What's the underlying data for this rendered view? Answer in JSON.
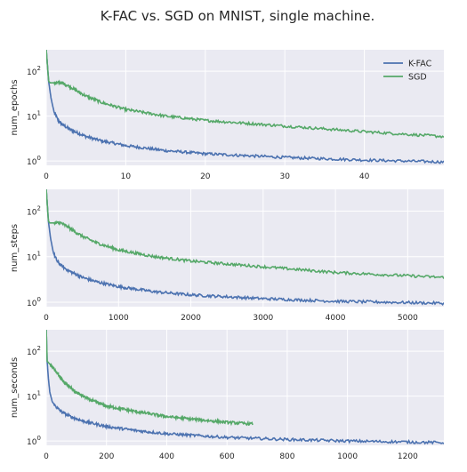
{
  "figure": {
    "title": "K-FAC vs. SGD on MNIST, single machine."
  },
  "colors": {
    "kfac": "#4c72b0",
    "sgd": "#55a868",
    "panel_bg": "#eaeaf2",
    "grid": "#ffffff"
  },
  "chart_data": [
    {
      "type": "line",
      "ylabel": "num_epochs",
      "yscale": "log",
      "ylim": [
        0.8,
        300
      ],
      "yticks": [
        {
          "v": 1,
          "base": "10",
          "exp": "0"
        },
        {
          "v": 10,
          "base": "10",
          "exp": "1"
        },
        {
          "v": 100,
          "base": "10",
          "exp": "2"
        }
      ],
      "xlim": [
        0,
        50
      ],
      "xticks": [
        0,
        10,
        20,
        30,
        40
      ],
      "grid": true,
      "legend": {
        "placement": "top-right",
        "entries": [
          "K-FAC",
          "SGD"
        ]
      },
      "series": [
        {
          "name": "K-FAC",
          "x": [
            0,
            0.3,
            0.6,
            1,
            1.5,
            2,
            3,
            5,
            7,
            10,
            15,
            20,
            30,
            40,
            50
          ],
          "y": [
            300,
            60,
            25,
            12,
            8,
            6.5,
            5,
            3.5,
            2.8,
            2.2,
            1.7,
            1.45,
            1.2,
            1.05,
            0.95
          ]
        },
        {
          "name": "SGD",
          "x": [
            0,
            0.3,
            0.5,
            1,
            2,
            3,
            4,
            5,
            7,
            10,
            15,
            20,
            30,
            40,
            50
          ],
          "y": [
            300,
            60,
            55,
            55,
            55,
            45,
            35,
            28,
            20,
            14,
            10,
            8,
            6,
            4.5,
            3.5
          ]
        }
      ]
    },
    {
      "type": "line",
      "ylabel": "num_steps",
      "yscale": "log",
      "ylim": [
        0.8,
        300
      ],
      "yticks": [
        {
          "v": 1,
          "base": "10",
          "exp": "0"
        },
        {
          "v": 10,
          "base": "10",
          "exp": "1"
        },
        {
          "v": 100,
          "base": "10",
          "exp": "2"
        }
      ],
      "xlim": [
        0,
        5500
      ],
      "xticks": [
        0,
        1000,
        2000,
        3000,
        4000,
        5000
      ],
      "grid": true,
      "series": [
        {
          "name": "K-FAC",
          "x": [
            0,
            30,
            60,
            100,
            150,
            200,
            300,
            500,
            700,
            1000,
            1500,
            2000,
            3000,
            4000,
            5500
          ],
          "y": [
            300,
            60,
            25,
            12,
            8,
            6.5,
            5,
            3.5,
            2.8,
            2.2,
            1.7,
            1.45,
            1.2,
            1.05,
            0.95
          ]
        },
        {
          "name": "SGD",
          "x": [
            0,
            30,
            50,
            100,
            200,
            300,
            400,
            500,
            700,
            1000,
            1500,
            2000,
            3000,
            4000,
            5500
          ],
          "y": [
            300,
            60,
            55,
            55,
            55,
            45,
            35,
            28,
            20,
            14,
            10,
            8,
            6,
            4.5,
            3.5
          ]
        }
      ]
    },
    {
      "type": "line",
      "ylabel": "num_seconds",
      "yscale": "log",
      "ylim": [
        0.8,
        300
      ],
      "yticks": [
        {
          "v": 1,
          "base": "10",
          "exp": "0"
        },
        {
          "v": 10,
          "base": "10",
          "exp": "1"
        },
        {
          "v": 100,
          "base": "10",
          "exp": "2"
        }
      ],
      "xlim": [
        0,
        1320
      ],
      "xticks": [
        0,
        200,
        400,
        600,
        800,
        1000,
        1200
      ],
      "grid": true,
      "series": [
        {
          "name": "K-FAC",
          "x": [
            0,
            3,
            7,
            12,
            20,
            30,
            50,
            80,
            120,
            200,
            300,
            400,
            600,
            800,
            1000,
            1320
          ],
          "y": [
            300,
            60,
            25,
            12,
            7.5,
            6,
            4.5,
            3.5,
            2.8,
            2.1,
            1.7,
            1.45,
            1.2,
            1.08,
            1.0,
            0.92
          ]
        },
        {
          "name": "SGD",
          "x": [
            0,
            3,
            8,
            20,
            40,
            60,
            100,
            150,
            200,
            300,
            400,
            500,
            600,
            685
          ],
          "y": [
            300,
            60,
            55,
            45,
            30,
            20,
            12,
            8,
            6,
            4.5,
            3.5,
            3.0,
            2.6,
            2.4
          ]
        }
      ]
    }
  ]
}
